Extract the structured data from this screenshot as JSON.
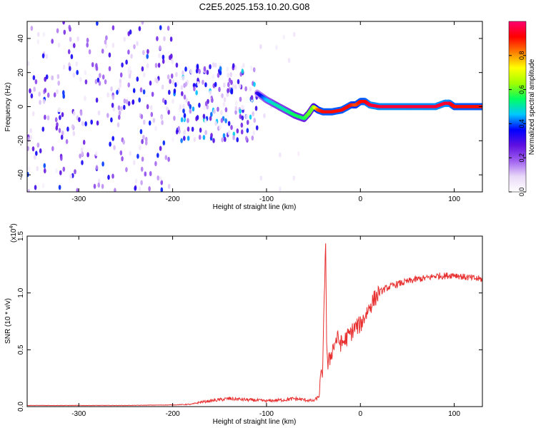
{
  "title": "C2E5.2025.153.10.20.G08",
  "chart_data": [
    {
      "type": "heatmap",
      "xlabel": "Height of straight line (km)",
      "ylabel": "Frequency (Hz)",
      "xlim": [
        -355,
        130
      ],
      "ylim": [
        -50,
        50
      ],
      "xticks": [
        -300,
        -200,
        -100,
        0,
        100
      ],
      "yticks": [
        -40,
        -20,
        0,
        20,
        40
      ],
      "colorbar": {
        "label": "Normalized spectral amplitude",
        "range": [
          0,
          1
        ],
        "ticks": [
          "0.0",
          "0.2",
          "0.4",
          "0.6",
          "0.8"
        ],
        "colors": [
          "#ffffff",
          "#e9d8f8",
          "#a060f0",
          "#6010e0",
          "#0000ff",
          "#00c8ff",
          "#00ff60",
          "#a0ff00",
          "#ffff00",
          "#ff8000",
          "#ff0000",
          "#ff0070"
        ]
      },
      "noise_regions": [
        {
          "x": [
            -355,
            -200
          ],
          "y": [
            -50,
            50
          ],
          "level": 0.25
        },
        {
          "x": [
            -200,
            -110
          ],
          "y": [
            -20,
            25
          ],
          "level": 0.3
        },
        {
          "x": [
            -110,
            -65
          ],
          "y": [
            -50,
            50
          ],
          "level": 0.05
        }
      ],
      "signal_track": {
        "x": [
          -110,
          -100,
          -90,
          -80,
          -70,
          -60,
          -55,
          -50,
          -45,
          -40,
          -30,
          -20,
          -10,
          -5,
          0,
          5,
          10,
          20,
          40,
          60,
          80,
          90,
          95,
          100,
          110,
          120,
          130
        ],
        "frequency": [
          8,
          4,
          1,
          -2,
          -5,
          -7,
          -4,
          0,
          -2,
          -3,
          -3,
          -2,
          1,
          1,
          3,
          3,
          1,
          0,
          0,
          0,
          0,
          2,
          2,
          0,
          0,
          0,
          0
        ],
        "amplitude": [
          0.3,
          0.45,
          0.5,
          0.5,
          0.55,
          0.55,
          0.6,
          0.6,
          0.85,
          0.9,
          0.9,
          0.9,
          0.9,
          0.85,
          0.9,
          0.9,
          0.95,
          0.95,
          0.95,
          0.95,
          0.95,
          0.95,
          0.95,
          0.9,
          0.9,
          0.9,
          0.9
        ]
      }
    },
    {
      "type": "line",
      "xlabel": "Height of straight line (km)",
      "ylabel": "SNR (10 * v/v)",
      "exponent_label": "(x10",
      "exponent": "4",
      "exponent_close": ")",
      "xlim": [
        -355,
        130
      ],
      "ylim": [
        0,
        1.5
      ],
      "xticks": [
        -300,
        -200,
        -100,
        0,
        100
      ],
      "yticks": [
        "0.0",
        "0.5",
        "1.0",
        "1.5"
      ],
      "series": [
        {
          "color": "#e83030",
          "x": [
            -355,
            -300,
            -250,
            -200,
            -180,
            -170,
            -160,
            -150,
            -140,
            -120,
            -100,
            -80,
            -70,
            -60,
            -50,
            -45,
            -40,
            -37,
            -36,
            -35,
            -30,
            -25,
            -20,
            -15,
            -10,
            -5,
            0,
            5,
            10,
            15,
            20,
            25,
            30,
            40,
            50,
            60,
            70,
            80,
            90,
            100,
            110,
            120,
            130
          ],
          "y": [
            0.01,
            0.01,
            0.01,
            0.015,
            0.02,
            0.04,
            0.05,
            0.06,
            0.07,
            0.06,
            0.05,
            0.06,
            0.07,
            0.06,
            0.05,
            0.08,
            0.35,
            1.5,
            0.6,
            0.35,
            0.5,
            0.6,
            0.55,
            0.6,
            0.65,
            0.7,
            0.72,
            0.8,
            0.88,
            0.95,
            1.0,
            1.03,
            1.05,
            1.08,
            1.1,
            1.12,
            1.13,
            1.15,
            1.15,
            1.16,
            1.14,
            1.13,
            1.12
          ]
        }
      ]
    }
  ]
}
